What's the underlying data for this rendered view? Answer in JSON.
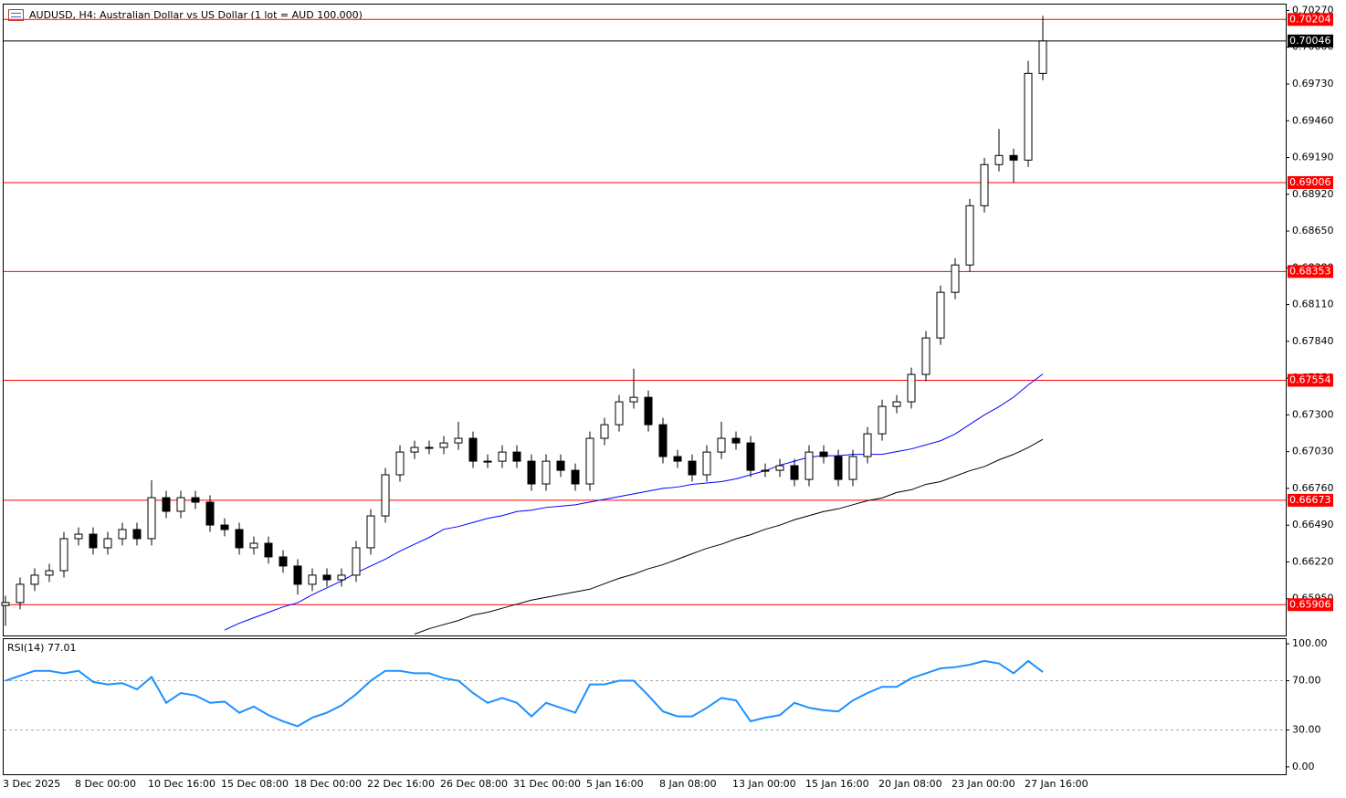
{
  "chart_data": [
    {
      "type": "candlestick",
      "title": "AUDUSD, H4:  Australian Dollar vs US Dollar (1 lot = AUD 100.000)",
      "categories": [
        "3 Dec 2025",
        null,
        null,
        null,
        null,
        "8 Dec 00:00",
        null,
        null,
        null,
        null,
        "10 Dec 16:00",
        null,
        null,
        null,
        null,
        "15 Dec 08:00",
        null,
        null,
        null,
        null,
        "18 Dec 00:00",
        null,
        null,
        null,
        null,
        "22 Dec 16:00",
        null,
        null,
        null,
        null,
        "26 Dec 08:00",
        null,
        null,
        null,
        null,
        "31 Dec 00:00",
        null,
        null,
        null,
        null,
        "5 Jan 16:00",
        null,
        null,
        null,
        null,
        "8 Jan 08:00",
        null,
        null,
        null,
        null,
        "13 Jan 00:00",
        null,
        null,
        null,
        null,
        "15 Jan 16:00",
        null,
        null,
        null,
        null,
        "20 Jan 08:00",
        null,
        null,
        null,
        null,
        "23 Jan 00:00",
        null,
        null,
        null,
        null,
        "27 Jan 16:00",
        null
      ],
      "open": [
        0.659,
        0.65922,
        0.66056,
        0.66123,
        0.66156,
        0.66391,
        0.66424,
        0.66324,
        0.66391,
        0.66458,
        0.66391,
        0.66692,
        0.66592,
        0.66692,
        0.66659,
        0.66491,
        0.66458,
        0.66324,
        0.66357,
        0.66257,
        0.6619,
        0.66056,
        0.66123,
        0.66089,
        0.66123,
        0.66324,
        0.66558,
        0.6686,
        0.67027,
        0.67061,
        0.67061,
        0.67094,
        0.67128,
        0.6696,
        0.6696,
        0.67027,
        0.6696,
        0.66793,
        0.6696,
        0.66893,
        0.66793,
        0.67128,
        0.67228,
        0.67396,
        0.67429,
        0.67228,
        0.66994,
        0.6696,
        0.6686,
        0.67027,
        0.67128,
        0.67094,
        0.66893,
        0.66893,
        0.66927,
        0.66826,
        0.67027,
        0.66994,
        0.66826,
        0.66994,
        0.67161,
        0.67362,
        0.67396,
        0.67597,
        0.67865,
        0.682,
        0.68401,
        0.68836,
        0.69138,
        0.69205,
        0.69171,
        0.69808
      ],
      "high": [
        0.65972,
        0.66106,
        0.66173,
        0.66206,
        0.66441,
        0.66474,
        0.66474,
        0.66441,
        0.66508,
        0.66508,
        0.6682,
        0.66742,
        0.66742,
        0.66742,
        0.66709,
        0.66541,
        0.66508,
        0.66407,
        0.66407,
        0.66307,
        0.6624,
        0.66173,
        0.66173,
        0.66173,
        0.66374,
        0.66608,
        0.6691,
        0.67077,
        0.67111,
        0.67111,
        0.67144,
        0.6725,
        0.67178,
        0.6701,
        0.67077,
        0.67077,
        0.6701,
        0.6701,
        0.6701,
        0.66943,
        0.67178,
        0.67278,
        0.67446,
        0.6764,
        0.67479,
        0.67278,
        0.67044,
        0.6701,
        0.67077,
        0.6725,
        0.67178,
        0.67144,
        0.66943,
        0.66977,
        0.66977,
        0.67077,
        0.67077,
        0.67044,
        0.67044,
        0.67211,
        0.67412,
        0.67446,
        0.67647,
        0.67915,
        0.6825,
        0.68451,
        0.68886,
        0.69188,
        0.694,
        0.69255,
        0.699,
        0.7023
      ],
      "low": [
        0.6575,
        0.65872,
        0.66006,
        0.66073,
        0.66106,
        0.66341,
        0.66274,
        0.66274,
        0.66341,
        0.66341,
        0.66341,
        0.66542,
        0.66542,
        0.66609,
        0.66441,
        0.66408,
        0.66274,
        0.66274,
        0.66207,
        0.6614,
        0.6598,
        0.66006,
        0.66039,
        0.66039,
        0.66073,
        0.66274,
        0.66508,
        0.6681,
        0.66977,
        0.67011,
        0.67011,
        0.67044,
        0.6691,
        0.6691,
        0.6691,
        0.6691,
        0.66743,
        0.66743,
        0.66843,
        0.66743,
        0.66743,
        0.67078,
        0.67178,
        0.67346,
        0.67178,
        0.66944,
        0.6691,
        0.6681,
        0.6681,
        0.66977,
        0.67044,
        0.66843,
        0.66843,
        0.66843,
        0.66776,
        0.66776,
        0.66944,
        0.66776,
        0.66776,
        0.66944,
        0.67111,
        0.67312,
        0.67346,
        0.67547,
        0.67815,
        0.6815,
        0.68351,
        0.68786,
        0.69088,
        0.69006,
        0.69121,
        0.69758
      ],
      "close": [
        0.65922,
        0.66056,
        0.66123,
        0.66156,
        0.66391,
        0.66424,
        0.66324,
        0.66391,
        0.66458,
        0.66391,
        0.66692,
        0.66592,
        0.66692,
        0.66659,
        0.66491,
        0.66458,
        0.66324,
        0.66357,
        0.66257,
        0.6619,
        0.66056,
        0.66123,
        0.66089,
        0.66123,
        0.66324,
        0.66558,
        0.6686,
        0.67027,
        0.67061,
        0.67061,
        0.67094,
        0.67128,
        0.6696,
        0.6696,
        0.67027,
        0.6696,
        0.66793,
        0.6696,
        0.66893,
        0.66793,
        0.67128,
        0.67228,
        0.67396,
        0.67429,
        0.67228,
        0.66994,
        0.6696,
        0.6686,
        0.67027,
        0.67128,
        0.67094,
        0.66893,
        0.66893,
        0.66927,
        0.66826,
        0.67027,
        0.66994,
        0.66826,
        0.66994,
        0.67161,
        0.67362,
        0.67396,
        0.67597,
        0.67865,
        0.682,
        0.68401,
        0.68836,
        0.69138,
        0.69205,
        0.69171,
        0.69808,
        0.70046
      ],
      "up_color": "#ffffff",
      "down_color": "#000000",
      "wick_color": "#000000",
      "series": [
        {
          "color": "#0000ff",
          "values": [
            null,
            null,
            null,
            null,
            null,
            null,
            null,
            null,
            null,
            null,
            null,
            null,
            null,
            null,
            null,
            0.6572,
            0.6577,
            0.6581,
            0.6585,
            0.6589,
            0.6592,
            0.6598,
            0.6603,
            0.6608,
            0.6614,
            0.6619,
            0.6624,
            0.663,
            0.6635,
            0.664,
            0.6646,
            0.6648,
            0.6651,
            0.6654,
            0.6656,
            0.6659,
            0.666,
            0.6662,
            0.6663,
            0.6664,
            0.6666,
            0.6668,
            0.667,
            0.6672,
            0.6674,
            0.6676,
            0.6677,
            0.6679,
            0.668,
            0.6681,
            0.6683,
            0.6686,
            0.6689,
            0.6693,
            0.6696,
            0.6699,
            0.67,
            0.67,
            0.6701,
            0.6701,
            0.6701,
            0.6703,
            0.6705,
            0.6708,
            0.6711,
            0.6716,
            0.6723,
            0.673,
            0.6736,
            0.6743,
            0.6752,
            0.676
          ]
        },
        {
          "color": "#000000",
          "values": [
            null,
            null,
            null,
            null,
            null,
            null,
            null,
            null,
            null,
            null,
            null,
            null,
            null,
            null,
            null,
            null,
            null,
            null,
            null,
            null,
            null,
            null,
            null,
            null,
            null,
            null,
            null,
            null,
            0.6569,
            0.6573,
            0.6576,
            0.6579,
            0.6583,
            0.6585,
            0.6588,
            0.6591,
            0.6594,
            0.6596,
            0.6598,
            0.66,
            0.6602,
            0.6606,
            0.661,
            0.6613,
            0.6617,
            0.662,
            0.6624,
            0.6628,
            0.6632,
            0.6635,
            0.6639,
            0.6642,
            0.6646,
            0.6649,
            0.6653,
            0.6656,
            0.6659,
            0.6661,
            0.6664,
            0.6667,
            0.6669,
            0.6673,
            0.6675,
            0.6679,
            0.6681,
            0.6685,
            0.6689,
            0.6692,
            0.6697,
            0.6701,
            0.6706,
            0.6712
          ]
        }
      ],
      "hlines": [
        {
          "value": 0.70204,
          "label": "0.70204",
          "color": "#ff0000"
        },
        {
          "value": 0.70046,
          "label": "0.70046",
          "color": "#000000"
        },
        {
          "value": 0.69006,
          "label": "0.69006",
          "color": "#ff0000"
        },
        {
          "value": 0.68353,
          "label": "0.68353",
          "color": "#ff0000"
        },
        {
          "value": 0.67554,
          "label": "0.67554",
          "color": "#ff0000"
        },
        {
          "value": 0.66673,
          "label": "0.66673",
          "color": "#ff0000"
        },
        {
          "value": 0.65906,
          "label": "0.65906",
          "color": "#ff0000"
        }
      ],
      "ylim": [
        0.6568,
        0.7032
      ],
      "yticks": [
        {
          "value": 0.7027,
          "label": "0.70270"
        },
        {
          "value": 0.7,
          "label": "0.70000"
        },
        {
          "value": 0.6973,
          "label": "0.69730"
        },
        {
          "value": 0.6946,
          "label": "0.69460"
        },
        {
          "value": 0.6919,
          "label": "0.69190"
        },
        {
          "value": 0.6892,
          "label": "0.68920"
        },
        {
          "value": 0.6865,
          "label": "0.68650"
        },
        {
          "value": 0.6838,
          "label": "0.68380"
        },
        {
          "value": 0.6811,
          "label": "0.68110"
        },
        {
          "value": 0.6784,
          "label": "0.67840"
        },
        {
          "value": 0.6757,
          "label": "0.67570"
        },
        {
          "value": 0.673,
          "label": "0.67300"
        },
        {
          "value": 0.6703,
          "label": "0.67030"
        },
        {
          "value": 0.6676,
          "label": "0.66760"
        },
        {
          "value": 0.6649,
          "label": "0.66490"
        },
        {
          "value": 0.6622,
          "label": "0.66220"
        },
        {
          "value": 0.6595,
          "label": "0.65950"
        }
      ]
    },
    {
      "type": "line",
      "title": "RSI(14) 77.01",
      "color": "#1e90ff",
      "values": [
        70,
        74,
        78,
        78,
        76,
        78,
        69,
        67,
        68,
        63,
        73,
        52,
        60,
        58,
        52,
        53,
        44,
        49,
        42,
        37,
        33,
        40,
        44,
        50,
        59,
        70,
        78,
        78,
        76,
        76,
        72,
        70,
        60,
        52,
        56,
        52,
        41,
        52,
        48,
        44,
        67,
        67,
        70,
        70,
        58,
        45,
        41,
        41,
        48,
        56,
        54,
        37,
        40,
        42,
        52,
        48,
        46,
        45,
        54,
        60,
        65,
        65,
        72,
        76,
        80,
        81,
        83,
        86,
        84,
        76,
        86,
        77.01
      ],
      "levels": [
        70,
        30
      ],
      "ylim": [
        -6,
        104.5
      ],
      "yticks": [
        {
          "value": 100,
          "label": "100.00"
        },
        {
          "value": 70,
          "label": "70.00"
        },
        {
          "value": 30,
          "label": "30.00"
        },
        {
          "value": 0,
          "label": "0.00"
        }
      ]
    }
  ]
}
